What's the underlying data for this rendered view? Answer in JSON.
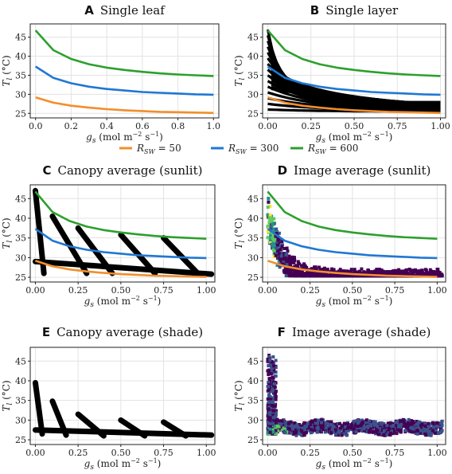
{
  "figure": {
    "legend": {
      "entries": [
        {
          "label": "R_SW = 50",
          "sym": "R",
          "sub": "SW",
          "value": "= 50",
          "color": "#f28e2b"
        },
        {
          "label": "R_SW = 300",
          "sym": "R",
          "sub": "SW",
          "value": "= 300",
          "color": "#1f77d4"
        },
        {
          "label": "R_SW = 600",
          "sym": "R",
          "sub": "SW",
          "value": "= 600",
          "color": "#2ca02c"
        }
      ]
    }
  },
  "chart_data": [
    {
      "id": "A",
      "letter": "A",
      "title": "Single leaf",
      "type": "line",
      "xlabel": "g_s (mol m^-2 s^-1)",
      "ylabel": "T_l (°C)",
      "xlim": [
        -0.03,
        1.03
      ],
      "ylim": [
        23.8,
        48.5
      ],
      "xticks": [
        0.0,
        0.2,
        0.4,
        0.6,
        0.8,
        1.0
      ],
      "xticklabels": [
        "0.0",
        "0.2",
        "0.4",
        "0.6",
        "0.8",
        "1.0"
      ],
      "yticks": [
        25,
        30,
        35,
        40,
        45
      ],
      "yticklabels": [
        "25",
        "30",
        "35",
        "40",
        "45"
      ],
      "grid": true,
      "series": [
        {
          "name": "R_SW = 50",
          "color": "#f28e2b",
          "x": [
            0.0,
            0.1,
            0.2,
            0.3,
            0.4,
            0.5,
            0.6,
            0.7,
            0.8,
            0.9,
            1.0
          ],
          "y": [
            29.2,
            27.8,
            27.0,
            26.5,
            26.1,
            25.8,
            25.6,
            25.4,
            25.3,
            25.2,
            25.1
          ]
        },
        {
          "name": "R_SW = 300",
          "color": "#1f77d4",
          "x": [
            0.0,
            0.1,
            0.2,
            0.3,
            0.4,
            0.5,
            0.6,
            0.7,
            0.8,
            0.9,
            1.0
          ],
          "y": [
            37.3,
            34.3,
            32.9,
            32.0,
            31.4,
            31.0,
            30.6,
            30.4,
            30.2,
            30.0,
            29.9
          ]
        },
        {
          "name": "R_SW = 600",
          "color": "#2ca02c",
          "x": [
            0.0,
            0.1,
            0.2,
            0.3,
            0.4,
            0.5,
            0.6,
            0.7,
            0.8,
            0.9,
            1.0
          ],
          "y": [
            46.8,
            41.6,
            39.3,
            37.9,
            37.0,
            36.4,
            35.9,
            35.5,
            35.2,
            35.0,
            34.8
          ]
        }
      ]
    },
    {
      "id": "B",
      "letter": "B",
      "title": "Single layer",
      "type": "line",
      "xlabel": "g_s (mol m^-2 s^-1)",
      "ylabel": "T_l (°C)",
      "xlim": [
        -0.03,
        1.03
      ],
      "ylim": [
        23.8,
        48.5
      ],
      "xticks": [
        0.0,
        0.25,
        0.5,
        0.75,
        1.0
      ],
      "xticklabels": [
        "0.00",
        "0.25",
        "0.50",
        "0.75",
        "1.00"
      ],
      "yticks": [
        25,
        30,
        35,
        40,
        45
      ],
      "yticklabels": [
        "25",
        "30",
        "35",
        "40",
        "45"
      ],
      "grid": true,
      "overlay": "black fan of simulated curves from T_l 25-47 °C at g_s 0 converging near g_s 1",
      "series": [
        {
          "name": "R_SW = 50",
          "color": "#f28e2b",
          "x": [
            0.0,
            0.1,
            0.2,
            0.3,
            0.4,
            0.5,
            0.6,
            0.7,
            0.8,
            0.9,
            1.0
          ],
          "y": [
            29.2,
            27.8,
            27.0,
            26.5,
            26.1,
            25.8,
            25.6,
            25.4,
            25.3,
            25.2,
            25.1
          ]
        },
        {
          "name": "R_SW = 300",
          "color": "#1f77d4",
          "x": [
            0.0,
            0.1,
            0.2,
            0.3,
            0.4,
            0.5,
            0.6,
            0.7,
            0.8,
            0.9,
            1.0
          ],
          "y": [
            37.3,
            34.3,
            32.9,
            32.0,
            31.4,
            31.0,
            30.6,
            30.4,
            30.2,
            30.0,
            29.9
          ]
        },
        {
          "name": "R_SW = 600",
          "color": "#2ca02c",
          "x": [
            0.0,
            0.1,
            0.2,
            0.3,
            0.4,
            0.5,
            0.6,
            0.7,
            0.8,
            0.9,
            1.0
          ],
          "y": [
            46.8,
            41.6,
            39.3,
            37.9,
            37.0,
            36.4,
            35.9,
            35.5,
            35.2,
            35.0,
            34.8
          ]
        }
      ]
    },
    {
      "id": "C",
      "letter": "C",
      "title": "Canopy average (sunlit)",
      "type": "scatter",
      "xlabel": "g_s (mol m^-2 s^-1)",
      "ylabel": "T_l (°C)",
      "xlim": [
        -0.03,
        1.05
      ],
      "ylim": [
        23.8,
        48.5
      ],
      "xticks": [
        0.0,
        0.25,
        0.5,
        0.75,
        1.0
      ],
      "xticklabels": [
        "0.00",
        "0.25",
        "0.50",
        "0.75",
        "1.00"
      ],
      "yticks": [
        25,
        30,
        35,
        40,
        45
      ],
      "yticklabels": [
        "25",
        "30",
        "35",
        "40",
        "45"
      ],
      "grid": true,
      "bands": [
        {
          "x0": 0.0,
          "y0": 47.0,
          "x1": 0.05,
          "y1": 26.0
        },
        {
          "x0": 0.1,
          "y0": 40.5,
          "x1": 0.3,
          "y1": 26.0
        },
        {
          "x0": 0.25,
          "y0": 37.5,
          "x1": 0.45,
          "y1": 26.0
        },
        {
          "x0": 0.5,
          "y0": 35.8,
          "x1": 0.7,
          "y1": 26.0
        },
        {
          "x0": 0.75,
          "y0": 35.0,
          "x1": 0.95,
          "y1": 26.0
        },
        {
          "x0": 0.0,
          "y0": 29.0,
          "x1": 1.03,
          "y1": 25.8
        }
      ],
      "series": [
        {
          "name": "R_SW = 50",
          "color": "#f28e2b",
          "x": [
            0.0,
            0.1,
            0.2,
            0.3,
            0.4,
            0.5,
            0.6,
            0.7,
            0.8,
            0.9,
            1.0
          ],
          "y": [
            29.2,
            27.8,
            27.0,
            26.5,
            26.1,
            25.8,
            25.6,
            25.4,
            25.3,
            25.2,
            25.1
          ]
        },
        {
          "name": "R_SW = 300",
          "color": "#1f77d4",
          "x": [
            0.0,
            0.1,
            0.2,
            0.3,
            0.4,
            0.5,
            0.6,
            0.7,
            0.8,
            0.9,
            1.0
          ],
          "y": [
            37.3,
            34.3,
            32.9,
            32.0,
            31.4,
            31.0,
            30.6,
            30.4,
            30.2,
            30.0,
            29.9
          ]
        },
        {
          "name": "R_SW = 600",
          "color": "#2ca02c",
          "x": [
            0.0,
            0.1,
            0.2,
            0.3,
            0.4,
            0.5,
            0.6,
            0.7,
            0.8,
            0.9,
            1.0
          ],
          "y": [
            46.8,
            41.6,
            39.3,
            37.9,
            37.0,
            36.4,
            35.9,
            35.5,
            35.2,
            35.0,
            34.8
          ]
        }
      ]
    },
    {
      "id": "D",
      "letter": "D",
      "title": "Image average (sunlit)",
      "type": "heatmap",
      "xlabel": "g_s (mol m^-2 s^-1)",
      "ylabel": "T_l (°C)",
      "xlim": [
        -0.03,
        1.05
      ],
      "ylim": [
        23.8,
        48.5
      ],
      "xticks": [
        0.0,
        0.25,
        0.5,
        0.75,
        1.0
      ],
      "xticklabels": [
        "0.00",
        "0.25",
        "0.50",
        "0.75",
        "1.00"
      ],
      "yticks": [
        25,
        30,
        35,
        40,
        45
      ],
      "yticklabels": [
        "25",
        "30",
        "35",
        "40",
        "45"
      ],
      "grid": true,
      "density_colors": [
        "#440154",
        "#3b528b",
        "#21918c",
        "#5ec962",
        "#fde725"
      ],
      "series": [
        {
          "name": "R_SW = 50",
          "color": "#f28e2b",
          "x": [
            0.0,
            0.1,
            0.2,
            0.3,
            0.4,
            0.5,
            0.6,
            0.7,
            0.8,
            0.9,
            1.0
          ],
          "y": [
            29.2,
            27.8,
            27.0,
            26.5,
            26.1,
            25.8,
            25.6,
            25.4,
            25.3,
            25.2,
            25.1
          ]
        },
        {
          "name": "R_SW = 300",
          "color": "#1f77d4",
          "x": [
            0.0,
            0.1,
            0.2,
            0.3,
            0.4,
            0.5,
            0.6,
            0.7,
            0.8,
            0.9,
            1.0
          ],
          "y": [
            37.3,
            34.3,
            32.9,
            32.0,
            31.4,
            31.0,
            30.6,
            30.4,
            30.2,
            30.0,
            29.9
          ]
        },
        {
          "name": "R_SW = 600",
          "color": "#2ca02c",
          "x": [
            0.0,
            0.1,
            0.2,
            0.3,
            0.4,
            0.5,
            0.6,
            0.7,
            0.8,
            0.9,
            1.0
          ],
          "y": [
            46.8,
            41.6,
            39.3,
            37.9,
            37.0,
            36.4,
            35.9,
            35.5,
            35.2,
            35.0,
            34.8
          ]
        }
      ]
    },
    {
      "id": "E",
      "letter": "E",
      "title": "Canopy average (shade)",
      "type": "scatter",
      "xlabel": "g_s (mol m^-2 s^-1)",
      "ylabel": "T_l (°C)",
      "xlim": [
        -0.03,
        1.05
      ],
      "ylim": [
        23.8,
        48.5
      ],
      "xticks": [
        0.0,
        0.25,
        0.5,
        0.75,
        1.0
      ],
      "xticklabels": [
        "0.00",
        "0.25",
        "0.50",
        "0.75",
        "1.00"
      ],
      "yticks": [
        25,
        30,
        35,
        40,
        45
      ],
      "yticklabels": [
        "25",
        "30",
        "35",
        "40",
        "45"
      ],
      "grid": true,
      "bands": [
        {
          "x0": 0.0,
          "y0": 39.5,
          "x1": 0.04,
          "y1": 26.5
        },
        {
          "x0": 0.1,
          "y0": 34.8,
          "x1": 0.18,
          "y1": 26.2
        },
        {
          "x0": 0.25,
          "y0": 31.5,
          "x1": 0.4,
          "y1": 26.0
        },
        {
          "x0": 0.5,
          "y0": 30.0,
          "x1": 0.64,
          "y1": 26.0
        },
        {
          "x0": 0.75,
          "y0": 29.5,
          "x1": 0.88,
          "y1": 26.0
        },
        {
          "x0": 0.0,
          "y0": 27.5,
          "x1": 1.03,
          "y1": 26.2
        }
      ],
      "series": []
    },
    {
      "id": "F",
      "letter": "F",
      "title": "Image average (shade)",
      "type": "heatmap",
      "xlabel": "g_s (mol m^-2 s^-1)",
      "ylabel": "T_l (°C)",
      "xlim": [
        -0.03,
        1.05
      ],
      "ylim": [
        23.8,
        48.5
      ],
      "xticks": [
        0.0,
        0.25,
        0.5,
        0.75,
        1.0
      ],
      "xticklabels": [
        "0.00",
        "0.25",
        "0.50",
        "0.75",
        "1.00"
      ],
      "yticks": [
        25,
        30,
        35,
        40,
        45
      ],
      "yticklabels": [
        "25",
        "30",
        "35",
        "40",
        "45"
      ],
      "grid": true,
      "density_colors": [
        "#440154",
        "#3b528b",
        "#21918c",
        "#5ec962",
        "#fde725"
      ],
      "series": []
    }
  ]
}
